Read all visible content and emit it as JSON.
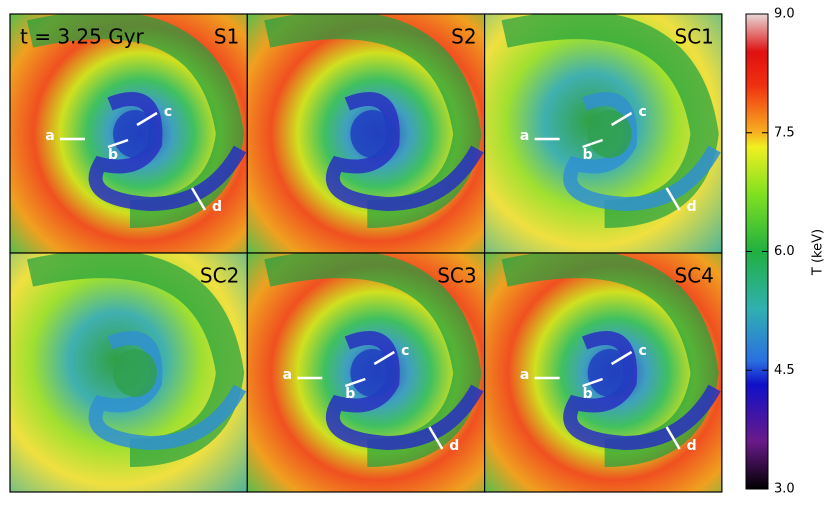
{
  "chart_data": {
    "type": "heatmap",
    "time_label": "t = 3.25 Gyr",
    "panels": [
      {
        "label": "S1",
        "annotations": [
          "a",
          "b",
          "c",
          "d"
        ]
      },
      {
        "label": "S2"
      },
      {
        "label": "SC1",
        "annotations": [
          "a",
          "b",
          "c",
          "d"
        ]
      },
      {
        "label": "SC2"
      },
      {
        "label": "SC3",
        "annotations": [
          "a",
          "b",
          "c",
          "d"
        ]
      },
      {
        "label": "SC4",
        "annotations": [
          "a",
          "b",
          "c",
          "d"
        ]
      }
    ],
    "colorbar_label": "T (keV)",
    "clim": [
      3,
      9
    ],
    "cticks": [
      {
        "value": 3,
        "label": "3.0"
      },
      {
        "value": 4.5,
        "label": "4.5"
      },
      {
        "value": 6,
        "label": "6.0"
      },
      {
        "value": 7.5,
        "label": "7.5"
      },
      {
        "value": 9,
        "label": "9.0"
      }
    ]
  }
}
